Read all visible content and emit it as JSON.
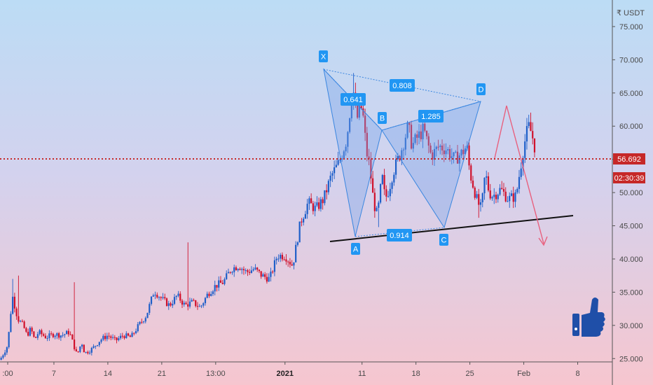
{
  "chart_data": {
    "type": "candlestick",
    "quote_currency_label": "₹ USDT",
    "y_ticks": [
      "75.000",
      "70.000",
      "65.000",
      "60.000",
      "55.000",
      "50.000",
      "45.000",
      "40.000",
      "35.000",
      "30.000",
      "25.000"
    ],
    "y_tick_values": [
      75000,
      70000,
      65000,
      60000,
      55000,
      50000,
      45000,
      40000,
      35000,
      30000,
      25000
    ],
    "ylim": [
      24500,
      79000
    ],
    "x_ticks": [
      {
        "label": ":00",
        "x": 1
      },
      {
        "label": "7",
        "x": 7
      },
      {
        "label": "14",
        "x": 14
      },
      {
        "label": "21",
        "x": 21
      },
      {
        "label": "13:00",
        "x": 28
      },
      {
        "label": "2021",
        "x": 37,
        "bold": true
      },
      {
        "label": "11",
        "x": 47
      },
      {
        "label": "18",
        "x": 54
      },
      {
        "label": "25",
        "x": 61
      },
      {
        "label": "Feb",
        "x": 68
      },
      {
        "label": "8",
        "x": 75
      }
    ],
    "xlim": [
      0,
      79.5
    ],
    "price_line": {
      "value": 56692,
      "label": "56.692",
      "countdown": "02:30:39",
      "color": "#c62828"
    },
    "ohlc_path": [
      [
        0,
        24800
      ],
      [
        1,
        27000
      ],
      [
        1.6,
        34500
      ],
      [
        2.3,
        31000
      ],
      [
        3,
        30000
      ],
      [
        3.5,
        28500
      ],
      [
        4,
        29500
      ],
      [
        4.5,
        27800
      ],
      [
        5,
        29000
      ],
      [
        6,
        28200
      ],
      [
        7,
        28700
      ],
      [
        8,
        28500
      ],
      [
        9,
        29000
      ],
      [
        10,
        25500
      ],
      [
        10.6,
        27500
      ],
      [
        11,
        25800
      ],
      [
        12,
        26500
      ],
      [
        13,
        27800
      ],
      [
        14,
        28500
      ],
      [
        15,
        27700
      ],
      [
        16,
        28500
      ],
      [
        17,
        28200
      ],
      [
        18,
        30000
      ],
      [
        19,
        31500
      ],
      [
        20,
        35200
      ],
      [
        21,
        34000
      ],
      [
        22,
        33000
      ],
      [
        23,
        34500
      ],
      [
        24,
        33000
      ],
      [
        25,
        33500
      ],
      [
        26,
        32700
      ],
      [
        27,
        34800
      ],
      [
        28,
        36000
      ],
      [
        29,
        36500
      ],
      [
        30,
        38500
      ],
      [
        31,
        39000
      ],
      [
        32,
        38000
      ],
      [
        33,
        38500
      ],
      [
        34,
        37500
      ],
      [
        35,
        37000
      ],
      [
        36,
        40500
      ],
      [
        37,
        40500
      ],
      [
        38,
        39000
      ],
      [
        39,
        45500
      ],
      [
        40,
        48500
      ],
      [
        41,
        47500
      ],
      [
        42,
        49000
      ],
      [
        43,
        52500
      ],
      [
        44,
        54500
      ],
      [
        45,
        58000
      ],
      [
        45.8,
        66000
      ],
      [
        46.3,
        61000
      ],
      [
        47,
        63000
      ],
      [
        47.6,
        56000
      ],
      [
        48,
        54000
      ],
      [
        48.5,
        48500
      ],
      [
        49,
        46500
      ],
      [
        49.6,
        52500
      ],
      [
        50,
        49000
      ],
      [
        50.5,
        50500
      ],
      [
        51,
        53000
      ],
      [
        52,
        56000
      ],
      [
        53,
        60000
      ],
      [
        53.5,
        57000
      ],
      [
        54,
        58000
      ],
      [
        55,
        59500
      ],
      [
        56,
        55500
      ],
      [
        57,
        57000
      ],
      [
        58,
        56500
      ],
      [
        59,
        55000
      ],
      [
        60,
        56000
      ],
      [
        60.6,
        57000
      ],
      [
        61,
        53000
      ],
      [
        62,
        48500
      ],
      [
        62.5,
        47500
      ],
      [
        63,
        53000
      ],
      [
        63.5,
        50000
      ],
      [
        64,
        49500
      ],
      [
        65,
        50500
      ],
      [
        66,
        49000
      ],
      [
        67,
        49500
      ],
      [
        68,
        57000
      ],
      [
        68.6,
        60000
      ],
      [
        69,
        59000
      ],
      [
        69.5,
        56500
      ]
    ],
    "annotations": [
      {
        "text": "X",
        "time": 45.6,
        "price": 71200
      },
      {
        "text": "A",
        "time": 49.7,
        "price": 43800
      },
      {
        "text": "B",
        "time": 53.6,
        "price": 61600
      },
      {
        "text": "C",
        "time": 62.4,
        "price": 45500
      },
      {
        "text": "D",
        "time": 68.2,
        "price": 66300
      }
    ],
    "ratios": [
      "0.641",
      "0.808",
      "1.285",
      "0.914"
    ],
    "projection": "arrow: up to ~65.300 then down to ~42.800",
    "trendline": "black support line from ~43.300 to ~47.500",
    "icon": "thumbs-up-icon"
  }
}
